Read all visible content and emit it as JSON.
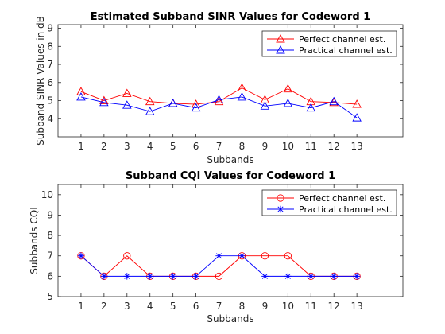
{
  "chart_data": [
    {
      "type": "line",
      "title": "Estimated Subband SINR Values for Codeword 1",
      "xlabel": "Subbands",
      "ylabel": "Subband SINR Values in dB",
      "x": [
        1,
        2,
        3,
        4,
        5,
        6,
        7,
        8,
        9,
        10,
        11,
        12,
        13
      ],
      "xlim": [
        0,
        15
      ],
      "ylim": [
        3,
        9.2
      ],
      "yticks": [
        4,
        5,
        6,
        7,
        8,
        9
      ],
      "grid": false,
      "legend_position": "top-right",
      "series": [
        {
          "name": "Perfect channel est.",
          "color": "#ff0000",
          "marker": "triangle",
          "values": [
            5.5,
            5.0,
            5.4,
            4.95,
            4.85,
            4.8,
            4.95,
            5.7,
            5.05,
            5.65,
            4.95,
            4.9,
            4.8
          ]
        },
        {
          "name": "Practical channel est.",
          "color": "#0000ff",
          "marker": "triangle",
          "values": [
            5.2,
            4.9,
            4.75,
            4.4,
            4.85,
            4.6,
            5.05,
            5.2,
            4.7,
            4.85,
            4.6,
            4.95,
            4.05
          ]
        }
      ]
    },
    {
      "type": "line",
      "title": "Subband CQI Values for Codeword 1",
      "xlabel": "Subbands",
      "ylabel": "Subbands CQI",
      "x": [
        1,
        2,
        3,
        4,
        5,
        6,
        7,
        8,
        9,
        10,
        11,
        12,
        13
      ],
      "xlim": [
        0,
        15
      ],
      "ylim": [
        5,
        10.5
      ],
      "yticks": [
        5,
        6,
        7,
        8,
        9,
        10
      ],
      "grid": false,
      "legend_position": "top-right",
      "series": [
        {
          "name": "Perfect channel est.",
          "color": "#ff0000",
          "marker": "circle",
          "values": [
            7,
            6,
            7,
            6,
            6,
            6,
            6,
            7,
            7,
            7,
            6,
            6,
            6
          ]
        },
        {
          "name": "Practical channel est.",
          "color": "#0000ff",
          "marker": "star",
          "values": [
            7,
            6,
            6,
            6,
            6,
            6,
            7,
            7,
            6,
            6,
            6,
            6,
            6
          ]
        }
      ]
    }
  ]
}
